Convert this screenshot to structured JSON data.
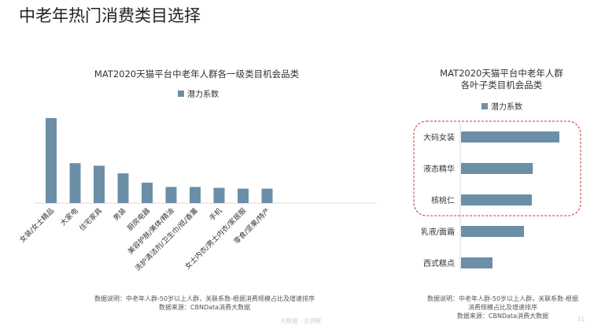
{
  "page": {
    "title": "中老年热门消费类目选择",
    "footer_center": "大数据 · 全洞察",
    "page_number": "31"
  },
  "colors": {
    "bar": "#6b8fa6",
    "highlight_border": "#c0392b"
  },
  "chart_data": [
    {
      "type": "bar",
      "orientation": "vertical",
      "title": "MAT2020天猫平台中老年人群各一级类目机会品类",
      "legend": "top",
      "series": [
        {
          "name": "潜力系数",
          "values": [
            100,
            47,
            44,
            35,
            24,
            19,
            19,
            18,
            17,
            17
          ]
        }
      ],
      "categories": [
        "女装/女士精品",
        "大家电",
        "住宅家具",
        "男装",
        "厨房电器",
        "美容护肤/美体/精油",
        "洗护清洁剂/卫生巾/纸/香薰",
        "手机",
        "女士内衣/男士内衣/家居服",
        "零食/坚果/特产"
      ],
      "ylim": [
        0,
        100
      ],
      "y_axis_shown": false,
      "grid": false,
      "notes": [
        "数据说明：中老年人群-50岁以上人群，关联系数-根据消费规模占比及增速排序",
        "数据来源：CBNData消费大数据"
      ]
    },
    {
      "type": "bar",
      "orientation": "horizontal",
      "title": [
        "MAT2020天猫平台中老年人群",
        "各叶子类目机会品类"
      ],
      "legend": "top",
      "series": [
        {
          "name": "潜力系数",
          "values": [
            100,
            73,
            72,
            64,
            32
          ]
        }
      ],
      "categories": [
        "大码女装",
        "液态精华",
        "核桃仁",
        "乳液/面霜",
        "西式糕点"
      ],
      "xlim": [
        0,
        100
      ],
      "highlighted_categories": [
        "大码女装",
        "液态精华",
        "核桃仁"
      ],
      "grid": false,
      "notes": [
        "数据说明：中老年人群-50岁以上人群，关联系数-根据",
        "消费规模占比及增速排序",
        "数据来源：CBNData消费大数据"
      ]
    }
  ]
}
